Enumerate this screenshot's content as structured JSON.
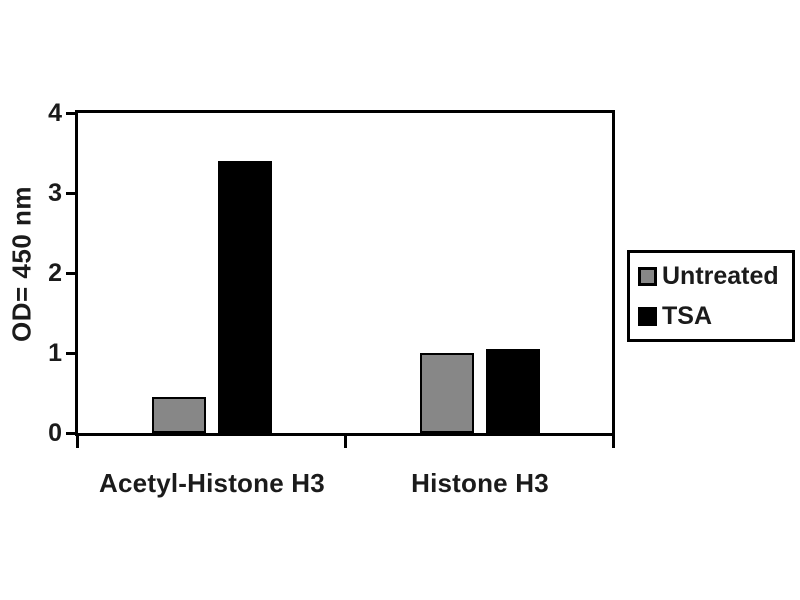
{
  "figure": {
    "background": "#ffffff",
    "text_color": "#1b1b1b",
    "axis_color": "#000000"
  },
  "chart_data": {
    "type": "bar",
    "title": "",
    "categories": [
      "Acetyl-Histone H3",
      "Histone H3"
    ],
    "series": [
      {
        "name": "Untreated",
        "color": "#878787",
        "values": [
          0.45,
          1.0
        ]
      },
      {
        "name": "TSA",
        "color": "#000000",
        "values": [
          3.4,
          1.05
        ]
      }
    ],
    "xlabel": "",
    "ylabel": "OD= 450 nm",
    "ylim": [
      0,
      4
    ],
    "yticks": [
      0,
      1,
      2,
      3,
      4
    ],
    "grid": false,
    "legend": {
      "position": "right-outside"
    }
  }
}
